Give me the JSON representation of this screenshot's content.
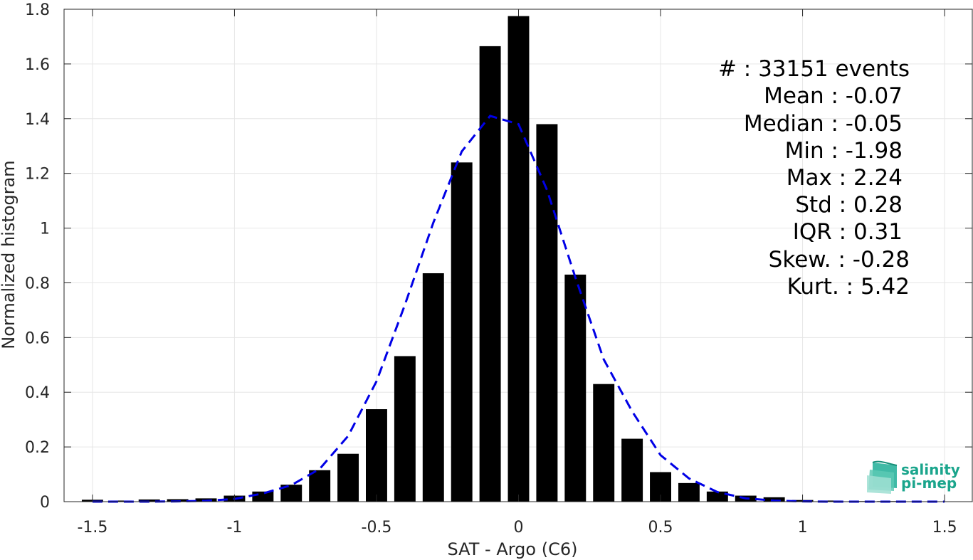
{
  "chart_data": {
    "type": "bar",
    "xlabel": "SAT - Argo (C6)",
    "ylabel": "Normalized histogram",
    "xlim": [
      -1.6,
      1.6
    ],
    "ylim": [
      0,
      1.8
    ],
    "xticks": [
      -1.5,
      -1,
      -0.5,
      0,
      0.5,
      1,
      1.5
    ],
    "xtick_labels": [
      "-1.5",
      "-1",
      "-0.5",
      "0",
      "0.5",
      "1",
      "1.5"
    ],
    "yticks": [
      0,
      0.2,
      0.4,
      0.6,
      0.8,
      1,
      1.2,
      1.4,
      1.6,
      1.8
    ],
    "ytick_labels": [
      "0",
      "0.2",
      "0.4",
      "0.6",
      "0.8",
      "1",
      "1.2",
      "1.4",
      "1.6",
      "1.8"
    ],
    "grid": true,
    "bar_width": 0.075,
    "bars": {
      "x": [
        -1.5,
        -1.4,
        -1.3,
        -1.2,
        -1.1,
        -1.0,
        -0.9,
        -0.8,
        -0.7,
        -0.6,
        -0.5,
        -0.4,
        -0.3,
        -0.2,
        -0.1,
        0.0,
        0.1,
        0.2,
        0.3,
        0.4,
        0.5,
        0.6,
        0.7,
        0.8,
        0.9,
        1.0,
        1.1,
        1.2,
        1.3,
        1.4,
        1.5
      ],
      "values": [
        0.007,
        0.004,
        0.008,
        0.009,
        0.012,
        0.022,
        0.037,
        0.062,
        0.115,
        0.175,
        0.338,
        0.532,
        0.835,
        1.24,
        1.665,
        1.775,
        1.38,
        0.83,
        0.43,
        0.23,
        0.108,
        0.068,
        0.037,
        0.022,
        0.016,
        0.006,
        0.004,
        0.002,
        0.002,
        0.001,
        0.001
      ],
      "color": "#000000"
    },
    "fit_line": {
      "style": "dashed",
      "color": "#0000e6",
      "x": [
        -1.5,
        -1.4,
        -1.3,
        -1.2,
        -1.1,
        -1.0,
        -0.9,
        -0.8,
        -0.7,
        -0.6,
        -0.5,
        -0.4,
        -0.3,
        -0.2,
        -0.1,
        0.0,
        0.1,
        0.2,
        0.3,
        0.4,
        0.5,
        0.6,
        0.7,
        0.8,
        0.9,
        1.0,
        1.1,
        1.2,
        1.3,
        1.4,
        1.5
      ],
      "y": [
        0.0,
        0.0,
        0.0,
        0.001,
        0.003,
        0.01,
        0.03,
        0.06,
        0.12,
        0.24,
        0.44,
        0.72,
        1.02,
        1.28,
        1.41,
        1.38,
        1.14,
        0.82,
        0.52,
        0.33,
        0.17,
        0.085,
        0.035,
        0.012,
        0.004,
        0.001,
        0.0,
        0.0,
        0.0,
        0.0,
        0.0
      ]
    },
    "stats": {
      "events": "#  : 33151 events",
      "mean": "Mean : -0.07",
      "median": "Median : -0.05",
      "min": "Min : -1.98",
      "max": "Max : 2.24",
      "std": "Std : 0.28",
      "iqr": "IQR : 0.31",
      "skew": "Skew. : -0.28",
      "kurt": "Kurt. : 5.42"
    }
  },
  "logo": {
    "line1": "salinity",
    "line2": "pi-mep",
    "color": "#1aa58c"
  }
}
